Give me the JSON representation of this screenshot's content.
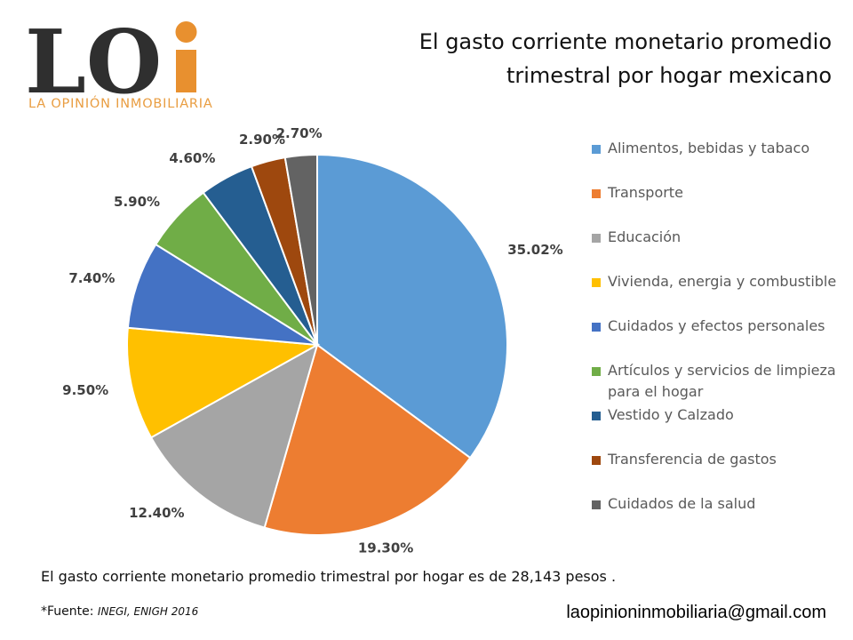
{
  "logo": {
    "mark": "LOi",
    "tagline": "LA OPINIÓN INMOBILIARIA",
    "dark_color": "#2f2f2f",
    "accent_color": "#e8902f"
  },
  "title": {
    "line1": "El gasto corriente monetario promedio",
    "line2": "trimestral por hogar mexicano"
  },
  "chart_data": {
    "type": "pie",
    "categories": [
      "Alimentos, bebidas y tabaco",
      "Transporte",
      "Educación",
      "Vivienda, energia y combustible",
      "Cuidados y efectos personales",
      "Artículos y servicios de limpieza para el hogar",
      "Vestido y Calzado",
      "Transferencia de gastos",
      "Cuidados de la salud"
    ],
    "values": [
      35.02,
      19.3,
      12.4,
      9.5,
      7.4,
      5.9,
      4.6,
      2.9,
      2.7
    ],
    "data_labels": [
      "35.02%",
      "19.30%",
      "12.40%",
      "9.50%",
      "7.40%",
      "5.90%",
      "4.60%",
      "2.90%",
      "2.70%"
    ],
    "colors": [
      "#5b9bd5",
      "#ed7d31",
      "#a5a5a5",
      "#ffc000",
      "#4472c4",
      "#70ad47",
      "#255e91",
      "#9e480e",
      "#636363"
    ],
    "legend_position": "right",
    "start_angle_deg": 0,
    "direction": "clockwise"
  },
  "note": "El gasto corriente monetario promedio trimestral por hogar es de 28,143 pesos .",
  "source": {
    "prefix": "*Fuente: ",
    "citation": "INEGI, ENIGH 2016"
  },
  "email": "laopinioninmobiliaria@gmail.com"
}
